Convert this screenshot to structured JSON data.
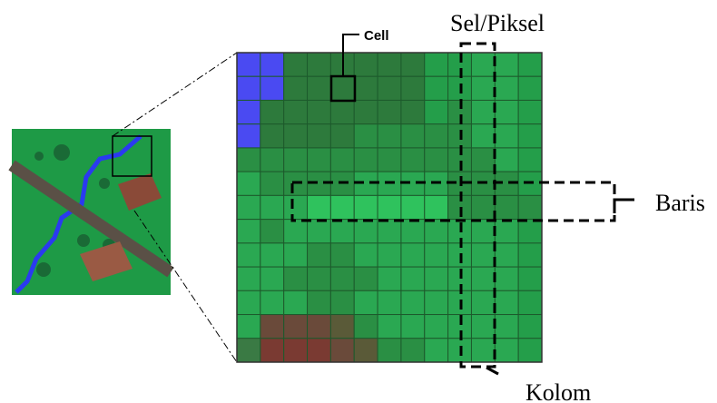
{
  "labels": {
    "cell": "Cell",
    "sel_piksel": "Sel/Piksel",
    "baris": "Baris",
    "kolom": "Kolom"
  },
  "grid": {
    "rows": 13,
    "cols": 13,
    "colors": [
      [
        "#4a4af2",
        "#4a4af2",
        "#2d7a3c",
        "#2d7a3c",
        "#2d7a3c",
        "#2d7a3c",
        "#2d7a3c",
        "#2d7a3c",
        "#249e4a",
        "#249e4a",
        "#2aa852",
        "#2aa852",
        "#249e4a"
      ],
      [
        "#4a4af2",
        "#4a4af2",
        "#2d7a3c",
        "#2d7a3c",
        "#2d7a3c",
        "#2d7a3c",
        "#2d7a3c",
        "#2d7a3c",
        "#249e4a",
        "#249e4a",
        "#2aa852",
        "#2aa852",
        "#249e4a"
      ],
      [
        "#4a4af2",
        "#2d7a3c",
        "#2d7a3c",
        "#2d7a3c",
        "#2d7a3c",
        "#2d7a3c",
        "#2d7a3c",
        "#2d7a3c",
        "#249e4a",
        "#2a8f44",
        "#2aa852",
        "#2aa852",
        "#249e4a"
      ],
      [
        "#4a4af2",
        "#2d7a3c",
        "#2d7a3c",
        "#2d7a3c",
        "#2d7a3c",
        "#2a8f44",
        "#2a8f44",
        "#2a8f44",
        "#2a8f44",
        "#2a8f44",
        "#2aa852",
        "#2aa852",
        "#249e4a"
      ],
      [
        "#2a8f44",
        "#2a8f44",
        "#2a8f44",
        "#2a8f44",
        "#2a8f44",
        "#2a8f44",
        "#2a8f44",
        "#2a8f44",
        "#2a8f44",
        "#2a8f44",
        "#2a8f44",
        "#2aa852",
        "#249e4a"
      ],
      [
        "#2aa852",
        "#2a8f44",
        "#2a8f44",
        "#2a8f44",
        "#2a8f44",
        "#2aa852",
        "#2aa852",
        "#2aa852",
        "#2aa852",
        "#2a8f44",
        "#2a8f44",
        "#2a8f44",
        "#249e4a"
      ],
      [
        "#2aa852",
        "#2aa852",
        "#2aa852",
        "#2fc25d",
        "#2fc25d",
        "#2fc25d",
        "#2fc25d",
        "#2fc25d",
        "#2fc25d",
        "#2a8f44",
        "#2a8f44",
        "#2a8f44",
        "#2a8f44"
      ],
      [
        "#2aa852",
        "#2a8f44",
        "#2aa852",
        "#2aa852",
        "#2aa852",
        "#2aa852",
        "#2aa852",
        "#2aa852",
        "#2aa852",
        "#2aa852",
        "#2aa852",
        "#2aa852",
        "#249e4a"
      ],
      [
        "#2aa852",
        "#2aa852",
        "#2aa852",
        "#2a8f44",
        "#2a8f44",
        "#2aa852",
        "#2aa852",
        "#2aa852",
        "#2aa852",
        "#2aa852",
        "#2aa852",
        "#2aa852",
        "#249e4a"
      ],
      [
        "#2aa852",
        "#2aa852",
        "#2a8f44",
        "#2a8f44",
        "#2a8f44",
        "#2a8f44",
        "#2aa852",
        "#2aa852",
        "#2aa852",
        "#2aa852",
        "#2aa852",
        "#2aa852",
        "#249e4a"
      ],
      [
        "#2aa852",
        "#2aa852",
        "#2aa852",
        "#2a8f44",
        "#2a8f44",
        "#2aa852",
        "#2aa852",
        "#2aa852",
        "#2aa852",
        "#2aa852",
        "#2aa852",
        "#2aa852",
        "#249e4a"
      ],
      [
        "#2aa852",
        "#6a4a3a",
        "#6a4a3a",
        "#6a4a3a",
        "#5a5a38",
        "#2a8f44",
        "#2aa852",
        "#2aa852",
        "#2aa852",
        "#2aa852",
        "#2aa852",
        "#2aa852",
        "#249e4a"
      ],
      [
        "#3a7a44",
        "#7a3a32",
        "#7a3a32",
        "#7a3a32",
        "#6a4a3a",
        "#5a5a38",
        "#2a8f44",
        "#2a8f44",
        "#2aa852",
        "#2aa852",
        "#2aa852",
        "#2aa852",
        "#249e4a"
      ]
    ]
  }
}
